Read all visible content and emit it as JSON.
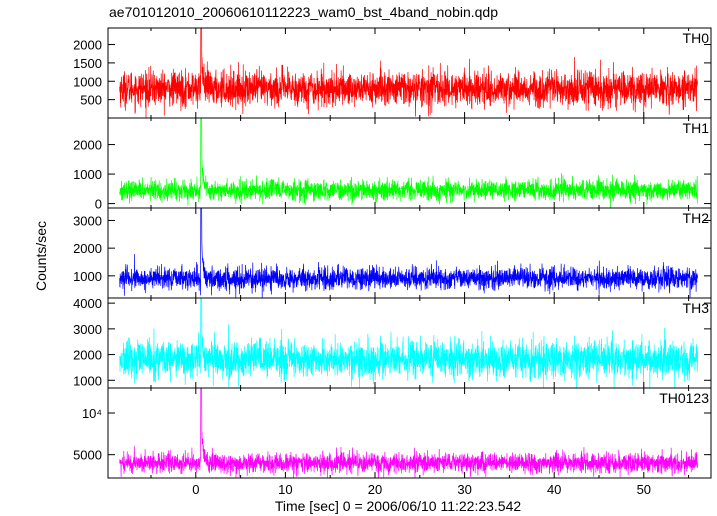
{
  "chart_data": {
    "type": "line",
    "title": "ae701012010_20060610112223_wam0_bst_4band_nobin.qdp",
    "xlabel": "Time [sec] 0 = 2006/06/10 11:22:23.542",
    "ylabel": "Counts/sec",
    "xlim": [
      -9.8,
      57.5
    ],
    "data_range": [
      -8.5,
      56
    ],
    "xticks": [
      "0",
      "10",
      "20",
      "30",
      "40",
      "50"
    ],
    "xtick_values": [
      0,
      10,
      20,
      30,
      40,
      50
    ],
    "grid": false,
    "panels": [
      {
        "name": "TH0",
        "color": "#ff0000",
        "ylim": [
          0,
          2450
        ],
        "yticks": [
          "500",
          "1000",
          "1500",
          "2000"
        ],
        "ytick_values": [
          500,
          1000,
          1500,
          2000
        ],
        "baseline": 800,
        "noise_sigma": 240,
        "peak": {
          "time": 0.6,
          "value": 2450
        }
      },
      {
        "name": "TH1",
        "color": "#00ff00",
        "ylim": [
          -150,
          2900
        ],
        "yticks": [
          "0",
          "1000",
          "2000"
        ],
        "ytick_values": [
          0,
          1000,
          2000
        ],
        "baseline": 450,
        "noise_sigma": 170,
        "peak": {
          "time": 0.6,
          "value": 2900
        }
      },
      {
        "name": "TH2",
        "color": "#0000ff",
        "ylim": [
          200,
          3450
        ],
        "yticks": [
          "1000",
          "2000",
          "3000"
        ],
        "ytick_values": [
          1000,
          2000,
          3000
        ],
        "baseline": 900,
        "noise_sigma": 200,
        "peak": {
          "time": 0.6,
          "value": 3450
        }
      },
      {
        "name": "TH3",
        "color": "#00ffff",
        "ylim": [
          700,
          4200
        ],
        "yticks": [
          "1000",
          "2000",
          "3000",
          "4000"
        ],
        "ytick_values": [
          1000,
          2000,
          3000,
          4000
        ],
        "baseline": 1800,
        "noise_sigma": 360,
        "peak": {
          "time": 0.6,
          "value": 4200
        }
      },
      {
        "name": "TH0123",
        "color": "#ff00ff",
        "ylim": [
          2200,
          13000
        ],
        "yticks": [
          "5000",
          "10⁴"
        ],
        "ytick_values": [
          5000,
          10000
        ],
        "baseline": 4000,
        "noise_sigma": 600,
        "peak": {
          "time": 0.6,
          "value": 13000
        }
      }
    ]
  }
}
